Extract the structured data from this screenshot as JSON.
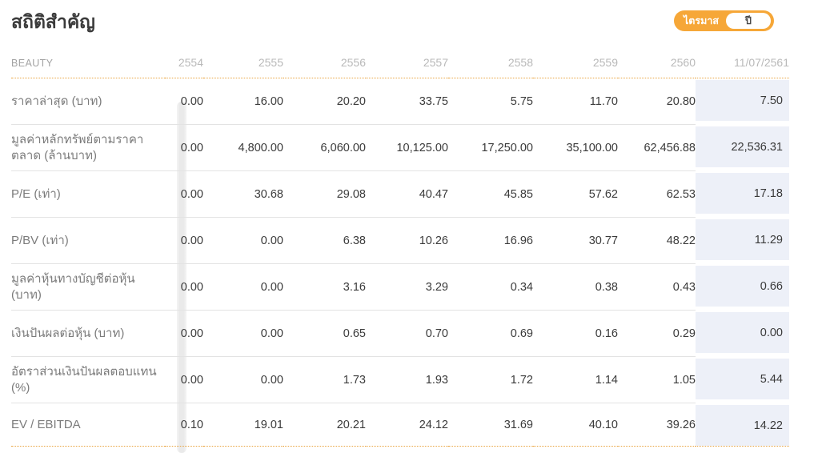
{
  "header": {
    "title": "สถิติสำคัญ",
    "toggle": {
      "quarter_label": "ไตรมาส",
      "year_label": "ปี",
      "selected": "ปี"
    }
  },
  "table": {
    "corner_label": "BEAUTY",
    "columns": [
      "2554",
      "2555",
      "2556",
      "2557",
      "2558",
      "2559",
      "2560",
      "11/07/2561"
    ],
    "rows": [
      {
        "label": "ราคาล่าสุด (บาท)",
        "values": [
          "0.00",
          "16.00",
          "20.20",
          "33.75",
          "5.75",
          "11.70",
          "20.80",
          "7.50"
        ]
      },
      {
        "label": "มูลค่าหลักทรัพย์ตามราคาตลาด (ล้านบาท)",
        "values": [
          "0.00",
          "4,800.00",
          "6,060.00",
          "10,125.00",
          "17,250.00",
          "35,100.00",
          "62,456.88",
          "22,536.31"
        ]
      },
      {
        "label": "P/E (เท่า)",
        "values": [
          "0.00",
          "30.68",
          "29.08",
          "40.47",
          "45.85",
          "57.62",
          "62.53",
          "17.18"
        ]
      },
      {
        "label": "P/BV (เท่า)",
        "values": [
          "0.00",
          "0.00",
          "6.38",
          "10.26",
          "16.96",
          "30.77",
          "48.22",
          "11.29"
        ]
      },
      {
        "label": "มูลค่าหุ้นทางบัญชีต่อหุ้น (บาท)",
        "values": [
          "0.00",
          "0.00",
          "3.16",
          "3.29",
          "0.34",
          "0.38",
          "0.43",
          "0.66"
        ]
      },
      {
        "label": "เงินปันผลต่อหุ้น (บาท)",
        "values": [
          "0.00",
          "0.00",
          "0.65",
          "0.70",
          "0.69",
          "0.16",
          "0.29",
          "0.00"
        ]
      },
      {
        "label": "อัตราส่วนเงินปันผลตอบแทน (%)",
        "values": [
          "0.00",
          "0.00",
          "1.73",
          "1.93",
          "1.72",
          "1.14",
          "1.05",
          "5.44"
        ]
      },
      {
        "label": "EV / EBITDA",
        "values": [
          "0.10",
          "19.01",
          "20.21",
          "24.12",
          "31.69",
          "40.10",
          "39.26",
          "14.22"
        ]
      }
    ]
  },
  "colors": {
    "accent_orange": "#F6A738",
    "highlight_column_bg": "#EDF0F8",
    "dotted_line": "#E9A43F"
  }
}
